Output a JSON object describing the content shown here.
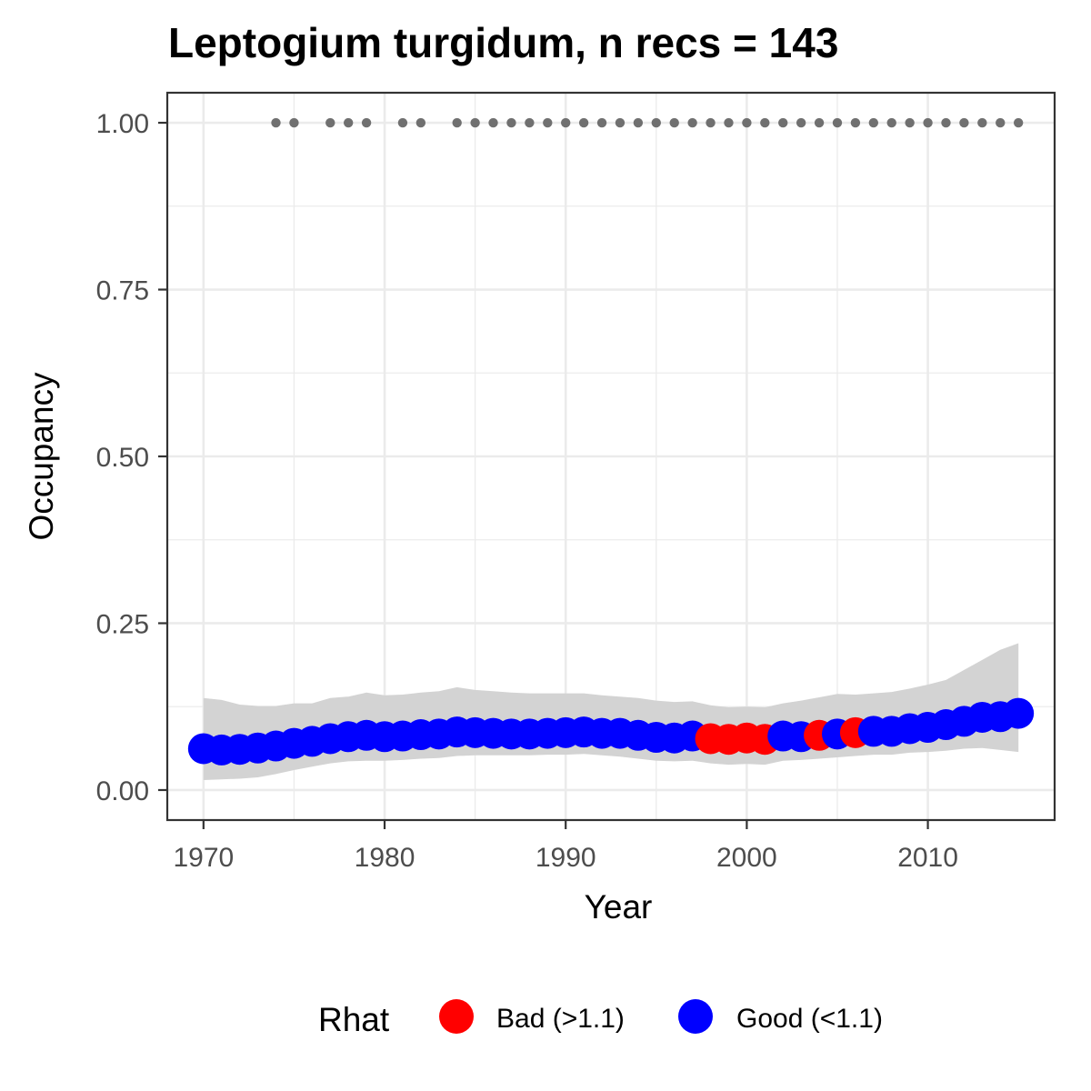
{
  "chart_data": {
    "type": "scatter",
    "title": "Leptogium turgidum, n recs = 143",
    "xlabel": "Year",
    "ylabel": "Occupancy",
    "xlim": [
      1968,
      2017
    ],
    "ylim": [
      -0.045,
      1.045
    ],
    "x_ticks": [
      1970,
      1980,
      1990,
      2000,
      2010
    ],
    "x_tick_labels": [
      "1970",
      "1980",
      "1990",
      "2000",
      "2010"
    ],
    "y_ticks": [
      0,
      0.25,
      0.5,
      0.75,
      1
    ],
    "y_tick_labels": [
      "0.00",
      "0.25",
      "0.50",
      "0.75",
      "1.00"
    ],
    "grid": true,
    "legend": {
      "title": "Rhat",
      "position": "bottom",
      "entries": [
        {
          "key": "bad",
          "label": "Bad (>1.1)",
          "color": "#ff0000"
        },
        {
          "key": "good",
          "label": "Good (<1.1)",
          "color": "#0000ff"
        }
      ]
    },
    "colors": {
      "bad": "#ff0000",
      "good": "#0000ff",
      "ribbon": "#d3d3d3",
      "record": "#707070"
    },
    "series": [
      {
        "key": "occupancy",
        "x": [
          1970,
          1971,
          1972,
          1973,
          1974,
          1975,
          1976,
          1977,
          1978,
          1979,
          1980,
          1981,
          1982,
          1983,
          1984,
          1985,
          1986,
          1987,
          1988,
          1989,
          1990,
          1991,
          1992,
          1993,
          1994,
          1995,
          1996,
          1997,
          1998,
          1999,
          2000,
          2001,
          2002,
          2003,
          2004,
          2005,
          2006,
          2007,
          2008,
          2009,
          2010,
          2011,
          2012,
          2013,
          2014,
          2015
        ],
        "y": [
          0.062,
          0.06,
          0.061,
          0.063,
          0.066,
          0.07,
          0.073,
          0.077,
          0.08,
          0.082,
          0.08,
          0.081,
          0.083,
          0.084,
          0.087,
          0.086,
          0.085,
          0.084,
          0.084,
          0.085,
          0.086,
          0.087,
          0.085,
          0.085,
          0.082,
          0.079,
          0.078,
          0.081,
          0.077,
          0.076,
          0.078,
          0.076,
          0.081,
          0.08,
          0.082,
          0.084,
          0.086,
          0.088,
          0.088,
          0.092,
          0.094,
          0.098,
          0.103,
          0.109,
          0.11,
          0.115
        ],
        "rhat": [
          "good",
          "good",
          "good",
          "good",
          "good",
          "good",
          "good",
          "good",
          "good",
          "good",
          "good",
          "good",
          "good",
          "good",
          "good",
          "good",
          "good",
          "good",
          "good",
          "good",
          "good",
          "good",
          "good",
          "good",
          "good",
          "good",
          "good",
          "good",
          "bad",
          "bad",
          "bad",
          "bad",
          "good",
          "good",
          "bad",
          "good",
          "bad",
          "good",
          "good",
          "good",
          "good",
          "good",
          "good",
          "good",
          "good",
          "good"
        ],
        "lower": [
          0.015,
          0.016,
          0.017,
          0.019,
          0.024,
          0.03,
          0.035,
          0.04,
          0.043,
          0.044,
          0.044,
          0.045,
          0.047,
          0.048,
          0.051,
          0.052,
          0.052,
          0.052,
          0.052,
          0.053,
          0.053,
          0.054,
          0.052,
          0.05,
          0.047,
          0.044,
          0.043,
          0.044,
          0.04,
          0.038,
          0.039,
          0.038,
          0.044,
          0.045,
          0.047,
          0.049,
          0.051,
          0.053,
          0.053,
          0.056,
          0.057,
          0.059,
          0.062,
          0.063,
          0.06,
          0.057
        ],
        "upper": [
          0.138,
          0.135,
          0.128,
          0.126,
          0.126,
          0.13,
          0.13,
          0.138,
          0.14,
          0.146,
          0.142,
          0.143,
          0.146,
          0.148,
          0.154,
          0.15,
          0.148,
          0.146,
          0.145,
          0.145,
          0.145,
          0.145,
          0.142,
          0.14,
          0.138,
          0.134,
          0.132,
          0.133,
          0.127,
          0.124,
          0.125,
          0.124,
          0.13,
          0.134,
          0.139,
          0.144,
          0.143,
          0.145,
          0.147,
          0.152,
          0.158,
          0.165,
          0.18,
          0.195,
          0.21,
          0.22
        ]
      },
      {
        "key": "records",
        "x": [
          1974,
          1975,
          1977,
          1978,
          1979,
          1981,
          1982,
          1984,
          1985,
          1986,
          1987,
          1988,
          1989,
          1990,
          1991,
          1992,
          1993,
          1994,
          1995,
          1996,
          1997,
          1998,
          1999,
          2000,
          2001,
          2002,
          2003,
          2004,
          2005,
          2006,
          2007,
          2008,
          2009,
          2010,
          2011,
          2012,
          2013,
          2014,
          2015
        ],
        "y": [
          1,
          1,
          1,
          1,
          1,
          1,
          1,
          1,
          1,
          1,
          1,
          1,
          1,
          1,
          1,
          1,
          1,
          1,
          1,
          1,
          1,
          1,
          1,
          1,
          1,
          1,
          1,
          1,
          1,
          1,
          1,
          1,
          1,
          1,
          1,
          1,
          1,
          1,
          1
        ]
      }
    ]
  }
}
